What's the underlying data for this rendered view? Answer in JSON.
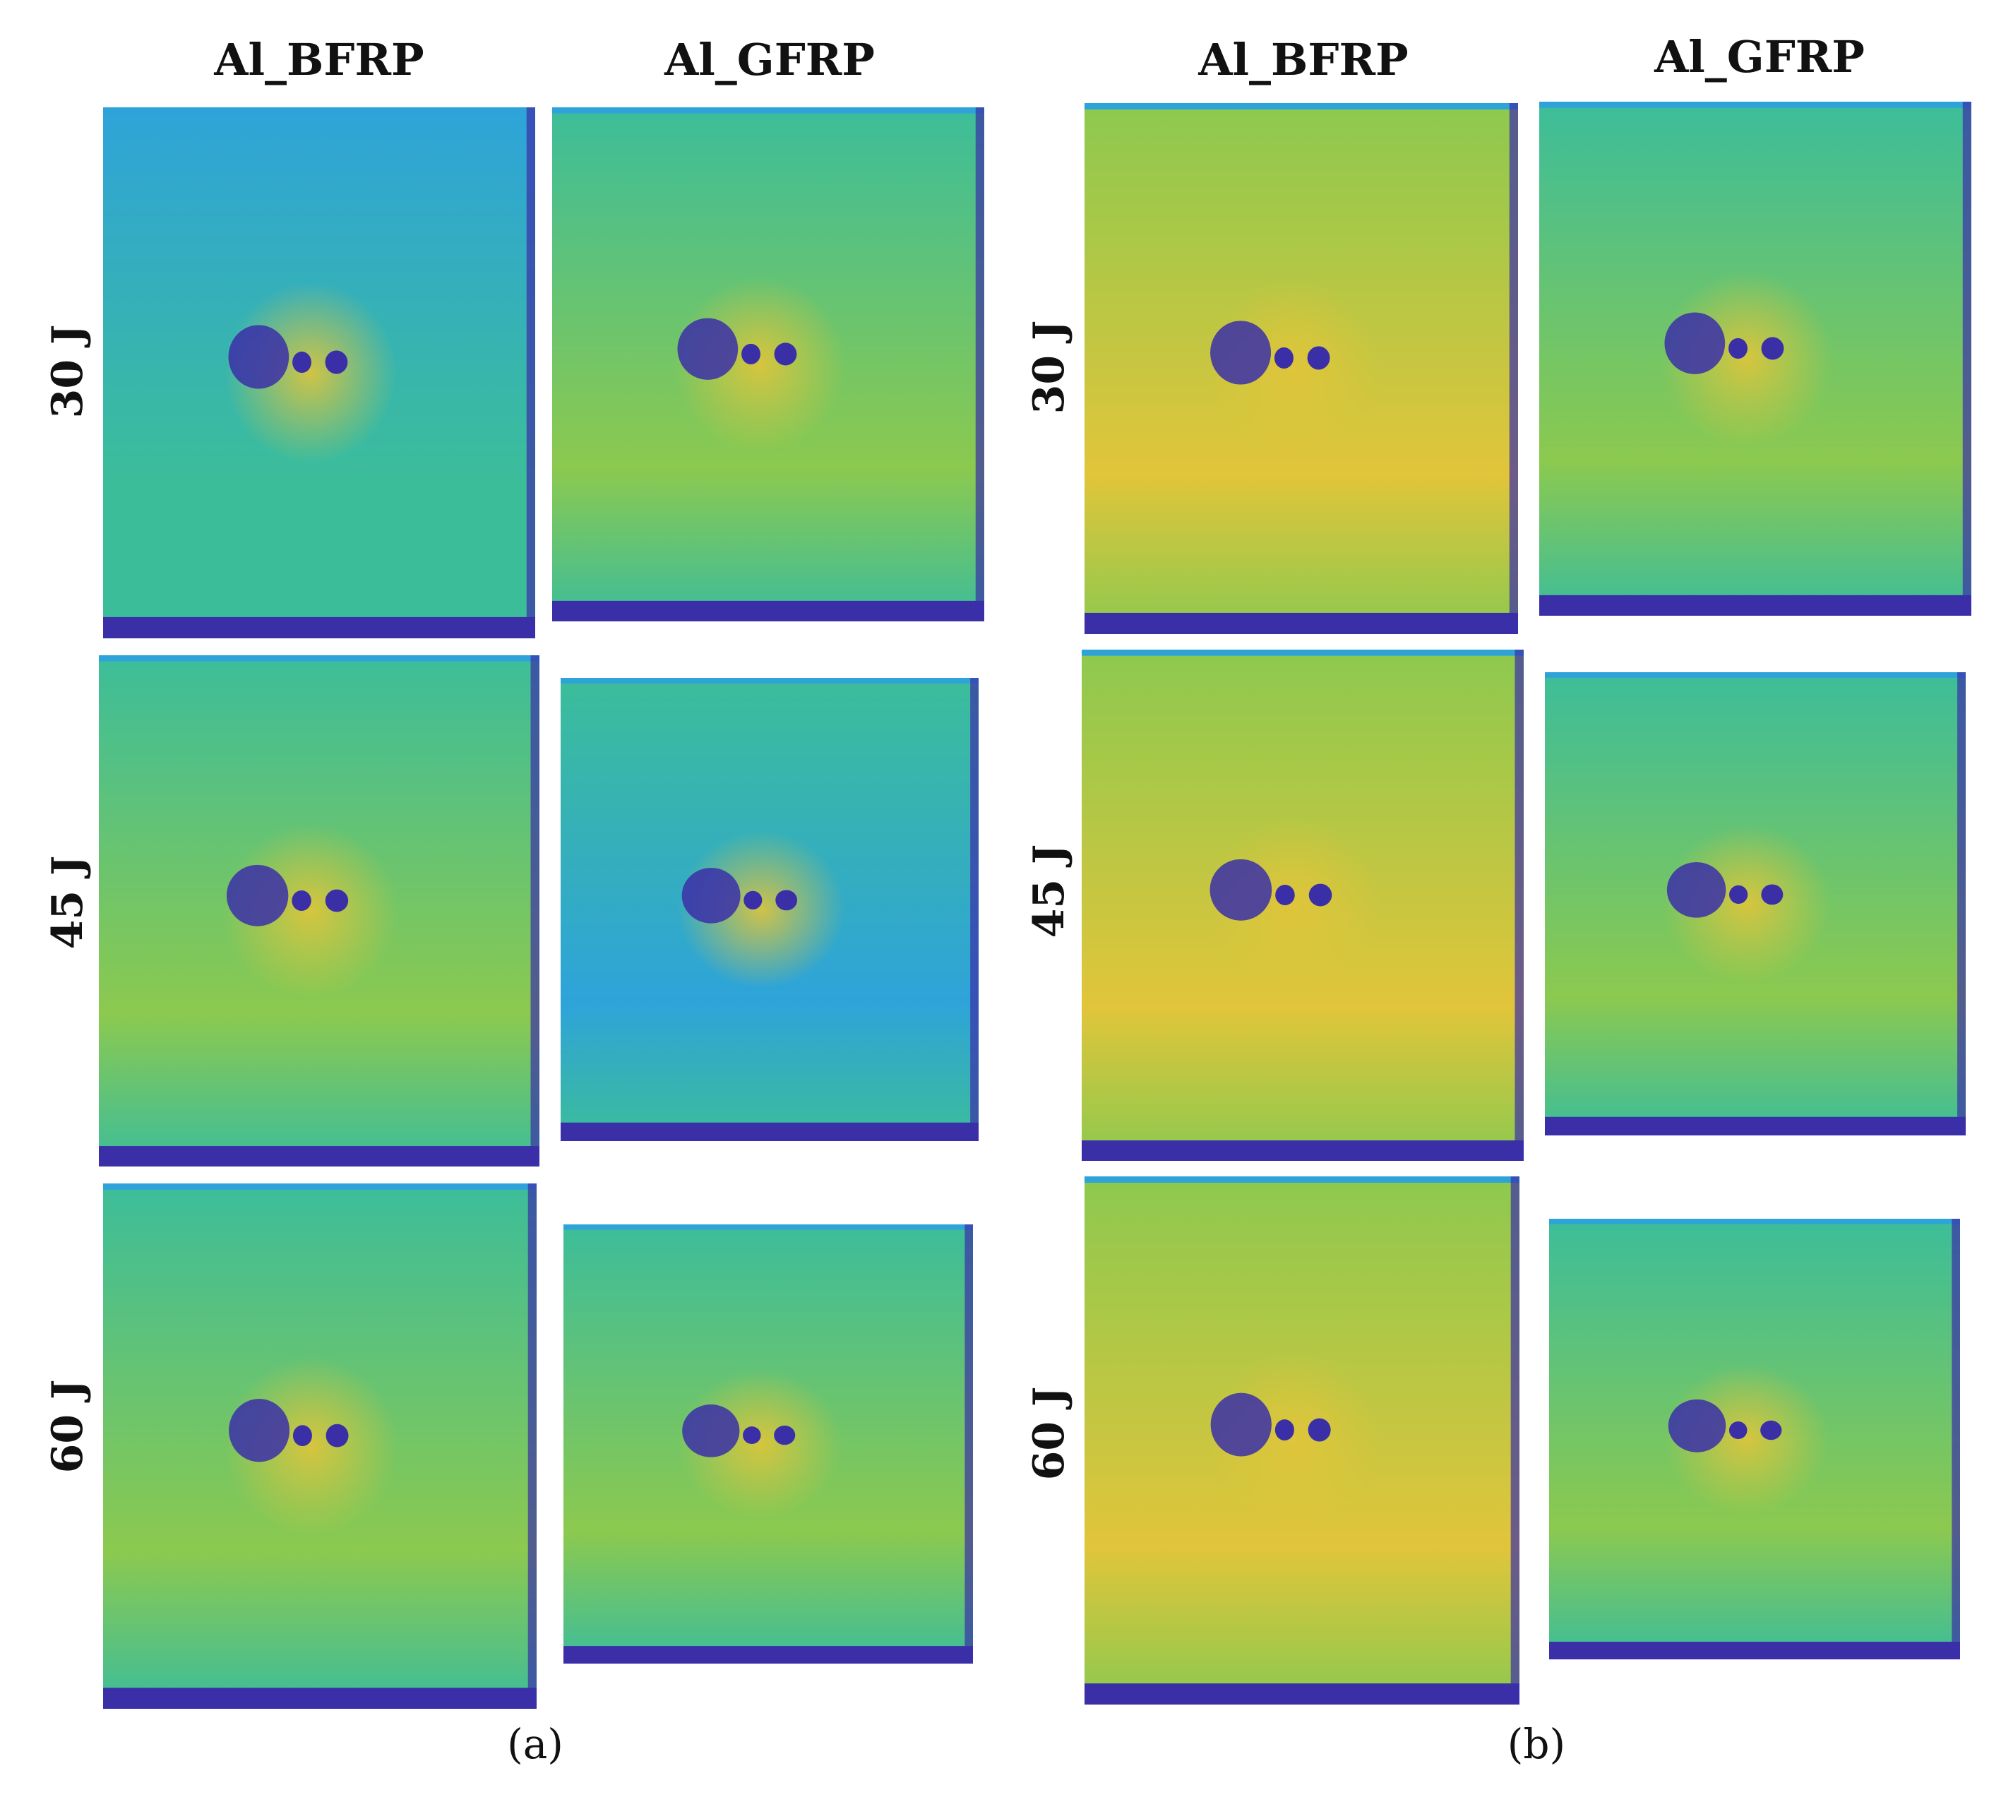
{
  "panel_a": {
    "caption": "(a)",
    "col_titles": [
      "Al_BFRP",
      "Al_GFRP"
    ],
    "row_labels": [
      "30 J",
      "45 J",
      "60 J"
    ]
  },
  "panel_b": {
    "caption": "(b)",
    "col_titles": [
      "Al_BFRP",
      "Al_GFRP"
    ],
    "row_labels": [
      "30 J",
      "45 J",
      "60 J"
    ]
  },
  "colormap": {
    "low": "#3b2fa8",
    "mid_low": "#2ea3d9",
    "mid": "#3cbd9a",
    "mid_high": "#8cc94f",
    "high": "#e1c53a"
  }
}
